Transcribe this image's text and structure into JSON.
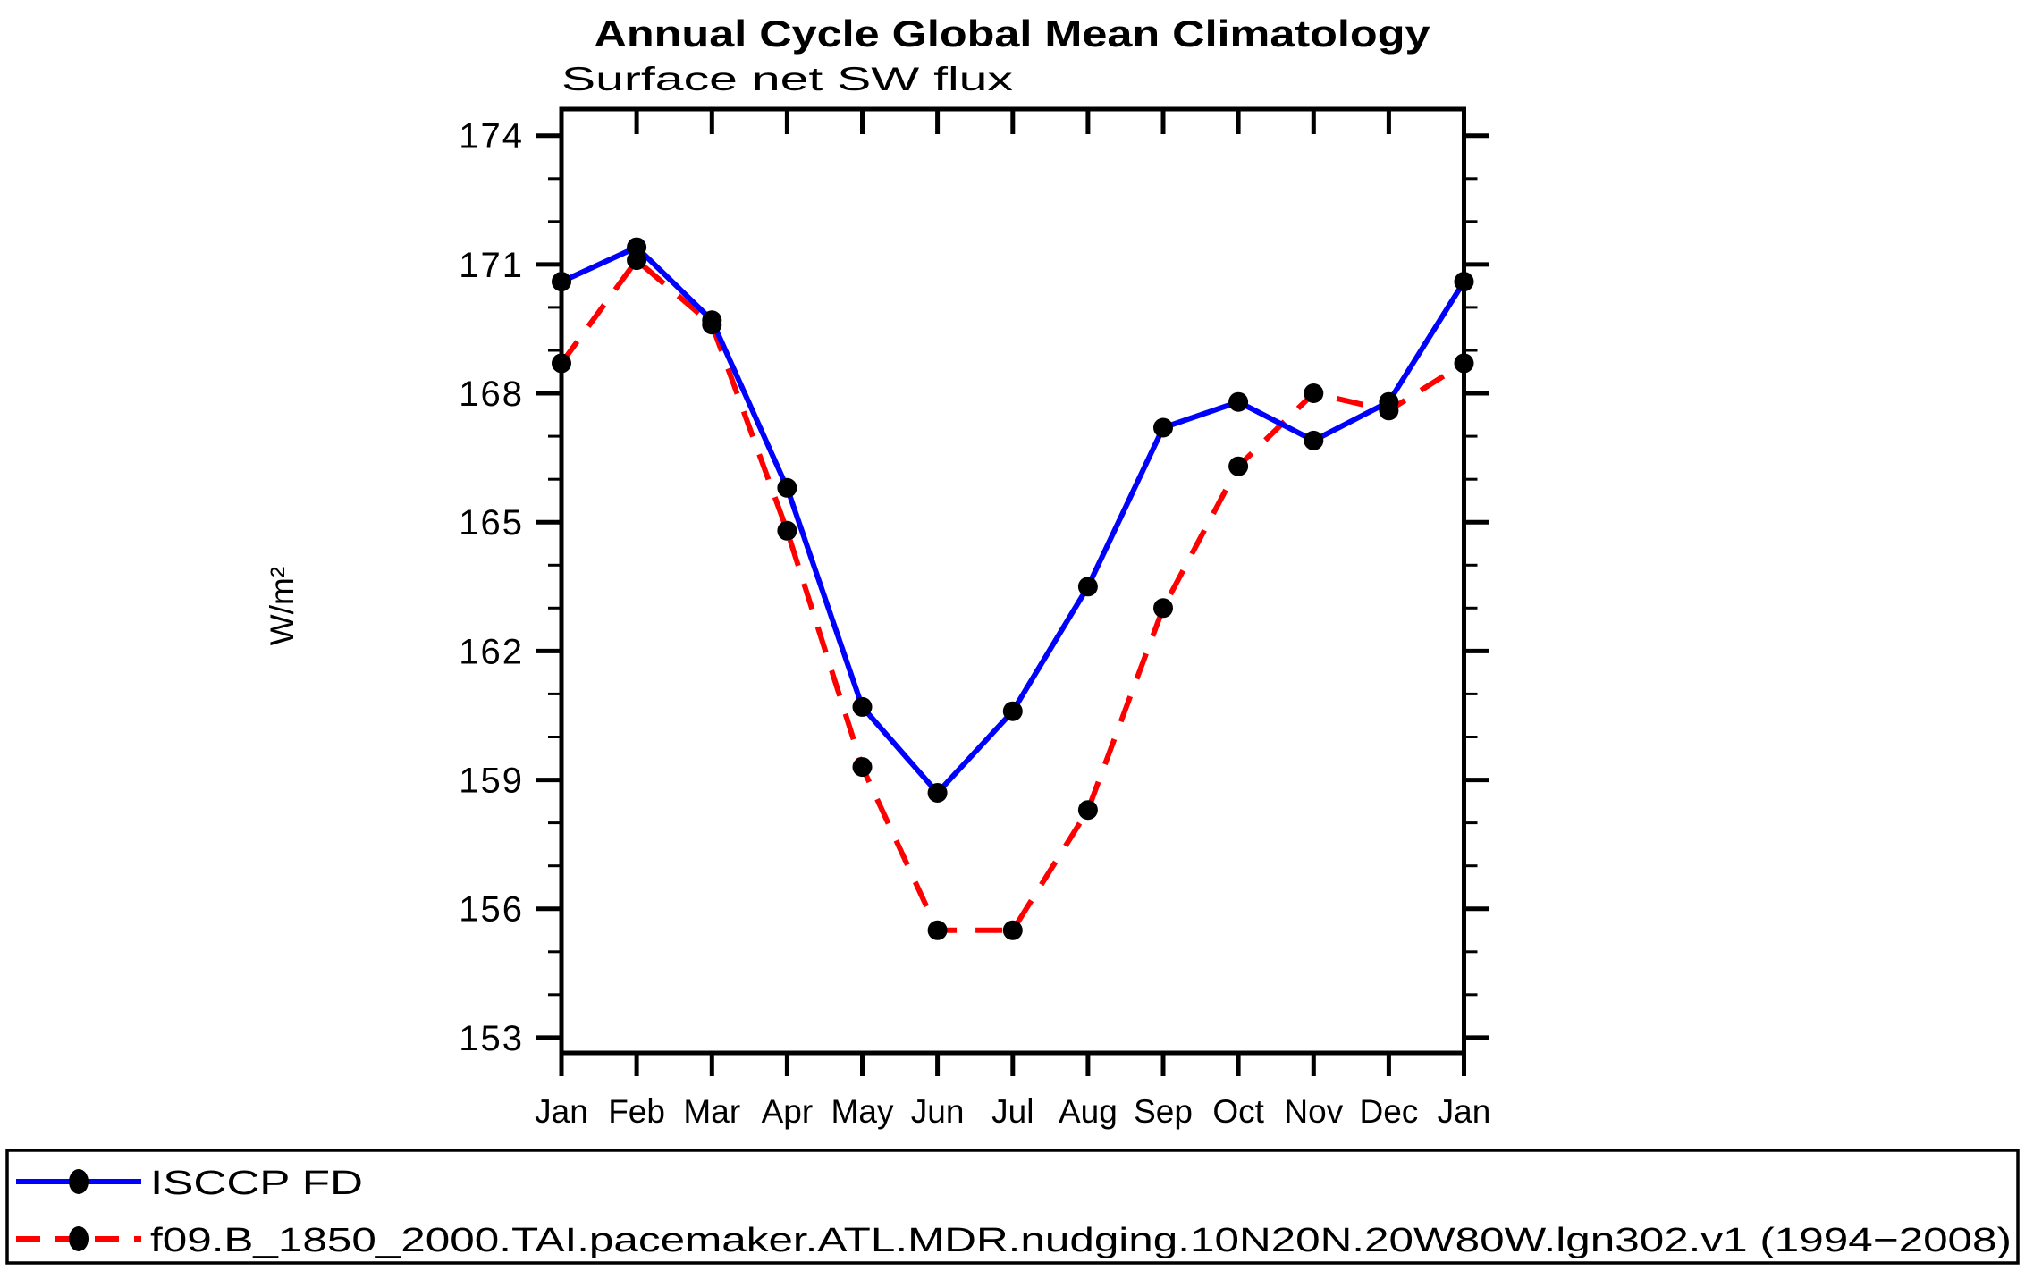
{
  "chart_data": {
    "type": "line",
    "title": "Annual Cycle Global Mean Climatology",
    "subtitle": "Surface net SW flux",
    "ylabel": "W/m²",
    "categories": [
      "Jan",
      "Feb",
      "Mar",
      "Apr",
      "May",
      "Jun",
      "Jul",
      "Aug",
      "Sep",
      "Oct",
      "Nov",
      "Dec",
      "Jan"
    ],
    "series": [
      {
        "name": "ISCCP FD",
        "color": "#0000ff",
        "line_style": "solid",
        "marker": "filled-circle",
        "marker_color": "#000000",
        "values": [
          170.6,
          171.4,
          169.7,
          165.8,
          160.7,
          158.7,
          160.6,
          163.5,
          167.2,
          167.8,
          166.9,
          167.8,
          170.6
        ]
      },
      {
        "name": "f09.B_1850_2000.TAI.pacemaker.ATL.MDR.nudging.10N20N.20W80W.lgn302.v1 (1994−2008)",
        "color": "#ff0000",
        "line_style": "dashed",
        "marker": "filled-circle",
        "marker_color": "#000000",
        "values": [
          168.7,
          171.1,
          169.6,
          164.8,
          159.3,
          155.5,
          155.5,
          158.3,
          163.0,
          166.3,
          168.0,
          167.6,
          168.7
        ]
      }
    ],
    "ylim": [
      153,
      174
    ],
    "y_major_ticks": [
      153,
      156,
      159,
      162,
      165,
      168,
      171,
      174
    ],
    "y_minor_step": 1,
    "grid": "off",
    "legend_position": "bottom-box",
    "axis_color": "#000000"
  },
  "legend": {
    "entries": [
      {
        "label": "ISCCP FD"
      },
      {
        "label": "f09.B_1850_2000.TAI.pacemaker.ATL.MDR.nudging.10N20N.20W80W.lgn302.v1 (1994−2008)"
      }
    ]
  }
}
